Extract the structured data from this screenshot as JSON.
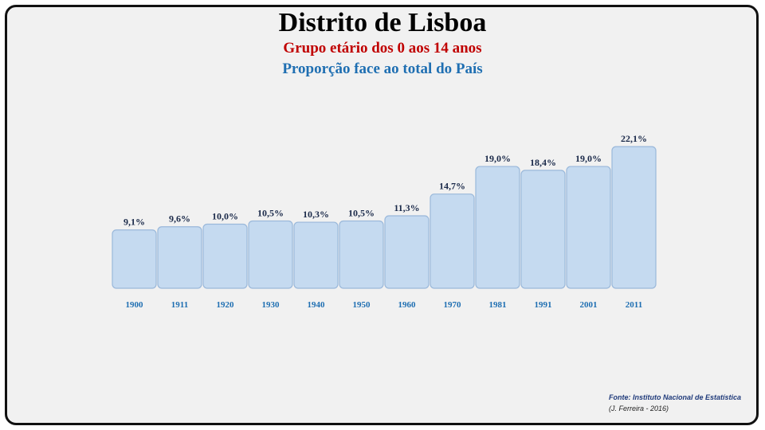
{
  "header": {
    "title": "Distrito de Lisboa",
    "subtitle": "Grupo etário dos 0 aos 14 anos",
    "subtitle2": "Proporção face ao total do País"
  },
  "footer": {
    "source": "Fonte: Instituto Nacional de Estatística",
    "author": "(J. Ferreira - 2016)"
  },
  "colors": {
    "bar_fill": "#c5daf0",
    "title": "#000000",
    "subtitle": "#c00000",
    "subtitle2": "#1f6fb2"
  },
  "chart_data": {
    "type": "bar",
    "title": "Distrito de Lisboa",
    "categories": [
      "1900",
      "1911",
      "1920",
      "1930",
      "1940",
      "1950",
      "1960",
      "1970",
      "1981",
      "1991",
      "2001",
      "2011"
    ],
    "values": [
      9.1,
      9.6,
      10.0,
      10.5,
      10.3,
      10.5,
      11.3,
      14.7,
      19.0,
      18.4,
      19.0,
      22.1
    ],
    "value_labels": [
      "9,1%",
      "9,6%",
      "10,0%",
      "10,5%",
      "10,3%",
      "10,5%",
      "11,3%",
      "14,7%",
      "19,0%",
      "18,4%",
      "19,0%",
      "22,1%"
    ],
    "xlabel": "",
    "ylabel": "",
    "ylim": [
      0,
      22.1
    ],
    "grid": false,
    "legend": "none"
  }
}
